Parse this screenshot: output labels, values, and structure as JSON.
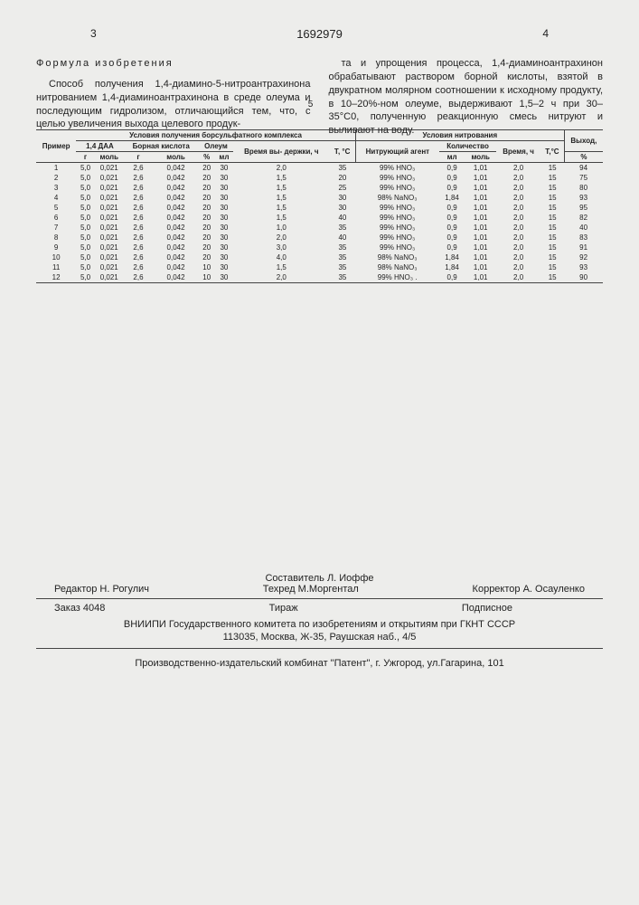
{
  "page_left": "3",
  "doc_number": "1692979",
  "page_right": "4",
  "formula_title": "Формула изобретения",
  "col_left": "Способ получения 1,4-диамино-5-нитроантрахинона нитрованием 1,4-диаминоантрахинона в среде олеума и последующим гидролизом, отличающийся тем, что, с целью увеличения выхода целевого продук-",
  "col_right": "та и упрощения процесса, 1,4-диаминоантрахинон обрабатывают раствором борной кислоты, взятой в двукратном молярном соотношении к исходному продукту, в 10–20%-ном олеуме, выдерживают 1,5–2 ч при 30–35°С0, полученную реакционную смесь нитруют и выливают на воду.",
  "five_marker": "5",
  "headers": {
    "example": "Пример",
    "group1": "Условия получения борсульфатного комплекса",
    "group2": "Условия нитрования",
    "out": "Выход,",
    "out2": "%",
    "daa": "1,4 ДАА",
    "bk": "Борная кислота",
    "ol": "Олеум",
    "hold": "Время вы-\nдержки, ч",
    "t1": "Т, °С",
    "agent": "Нитрующий\nагент",
    "qty": "Количество",
    "time": "Время, ч",
    "t2": "Т,°С",
    "g": "г",
    "mol": "моль",
    "pc": "%",
    "ml": "мл"
  },
  "rows": [
    {
      "n": "1",
      "g1": "5,0",
      "m1": "0,021",
      "g2": "2,6",
      "m2": "0,042",
      "p": "20",
      "ml": "30",
      "h": "2,0",
      "t": "35",
      "ag": "99% HNO₃",
      "ml2": "0,9",
      "mol2": "1,01",
      "tm": "2,0",
      "t2": "15",
      "y": "94"
    },
    {
      "n": "2",
      "g1": "5,0",
      "m1": "0,021",
      "g2": "2,6",
      "m2": "0,042",
      "p": "20",
      "ml": "30",
      "h": "1,5",
      "t": "20",
      "ag": "99% HNO₃",
      "ml2": "0,9",
      "mol2": "1,01",
      "tm": "2,0",
      "t2": "15",
      "y": "75"
    },
    {
      "n": "3",
      "g1": "5,0",
      "m1": "0,021",
      "g2": "2,6",
      "m2": "0,042",
      "p": "20",
      "ml": "30",
      "h": "1,5",
      "t": "25",
      "ag": "99% HNO₃",
      "ml2": "0,9",
      "mol2": "1,01",
      "tm": "2,0",
      "t2": "15",
      "y": "80"
    },
    {
      "n": "4",
      "g1": "5,0",
      "m1": "0,021",
      "g2": "2,6",
      "m2": "0,042",
      "p": "20",
      "ml": "30",
      "h": "1,5",
      "t": "30",
      "ag": "98% NaNO₃",
      "ml2": "1,84",
      "mol2": "1,01",
      "tm": "2,0",
      "t2": "15",
      "y": "93"
    },
    {
      "n": "5",
      "g1": "5,0",
      "m1": "0,021",
      "g2": "2,6",
      "m2": "0,042",
      "p": "20",
      "ml": "30",
      "h": "1,5",
      "t": "30",
      "ag": "99% HNO₃",
      "ml2": "0,9",
      "mol2": "1,01",
      "tm": "2,0",
      "t2": "15",
      "y": "95"
    },
    {
      "n": "6",
      "g1": "5,0",
      "m1": "0,021",
      "g2": "2,6",
      "m2": "0,042",
      "p": "20",
      "ml": "30",
      "h": "1,5",
      "t": "40",
      "ag": "99% HNO₃",
      "ml2": "0,9",
      "mol2": "1,01",
      "tm": "2,0",
      "t2": "15",
      "y": "82"
    },
    {
      "n": "7",
      "g1": "5,0",
      "m1": "0,021",
      "g2": "2,6",
      "m2": "0,042",
      "p": "20",
      "ml": "30",
      "h": "1,0",
      "t": "35",
      "ag": "99% HNO₃",
      "ml2": "0,9",
      "mol2": "1,01",
      "tm": "2,0",
      "t2": "15",
      "y": "40"
    },
    {
      "n": "8",
      "g1": "5,0",
      "m1": "0,021",
      "g2": "2,6",
      "m2": "0,042",
      "p": "20",
      "ml": "30",
      "h": "2,0",
      "t": "40",
      "ag": "99% HNO₃",
      "ml2": "0,9",
      "mol2": "1,01",
      "tm": "2,0",
      "t2": "15",
      "y": "83"
    },
    {
      "n": "9",
      "g1": "5,0",
      "m1": "0,021",
      "g2": "2,6",
      "m2": "0,042",
      "p": "20",
      "ml": "30",
      "h": "3,0",
      "t": "35",
      "ag": "99% HNO₃",
      "ml2": "0,9",
      "mol2": "1,01",
      "tm": "2,0",
      "t2": "15",
      "y": "91"
    },
    {
      "n": "10",
      "g1": "5,0",
      "m1": "0,021",
      "g2": "2,6",
      "m2": "0,042",
      "p": "20",
      "ml": "30",
      "h": "4,0",
      "t": "35",
      "ag": "98% NaNO₃",
      "ml2": "1,84",
      "mol2": "1,01",
      "tm": "2,0",
      "t2": "15",
      "y": "92"
    },
    {
      "n": "11",
      "g1": "5,0",
      "m1": "0,021",
      "g2": "2,6",
      "m2": "0,042",
      "p": "10",
      "ml": "30",
      "h": "1,5",
      "t": "35",
      "ag": "98% NaNO₃",
      "ml2": "1,84",
      "mol2": "1,01",
      "tm": "2,0",
      "t2": "15",
      "y": "93"
    },
    {
      "n": "12",
      "g1": "5,0",
      "m1": "0,021",
      "g2": "2,6",
      "m2": "0,042",
      "p": "10",
      "ml": "30",
      "h": "2,0",
      "t": "35",
      "ag": "99% HNO₃ .",
      "ml2": "0,9",
      "mol2": "1,01",
      "tm": "2,0",
      "t2": "15",
      "y": "90"
    }
  ],
  "footer": {
    "sost": "Составитель Л. Иоффе",
    "red": "Редактор Н. Рогулич",
    "tex": "Техред М.Моргентал",
    "kor": "Корректор А. Осауленко",
    "zakaz": "Заказ 4048",
    "tiraj": "Тираж",
    "podp": "Подписное",
    "org": "ВНИИПИ Государственного комитета по изобретениям и открытиям при ГКНТ СССР",
    "addr": "113035, Москва, Ж-35, Раушская наб., 4/5",
    "print": "Производственно-издательский комбинат \"Патент\", г. Ужгород, ул.Гагарина, 101"
  }
}
